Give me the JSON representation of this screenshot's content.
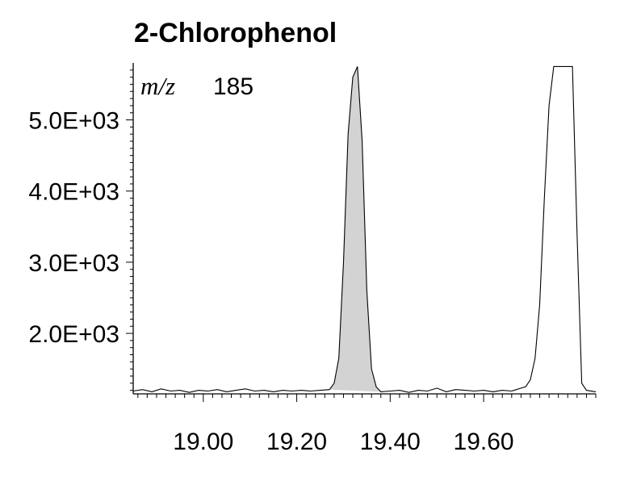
{
  "title": "2-Chlorophenol",
  "annotation": {
    "mz_label": "m/z",
    "mz_value": "185"
  },
  "colors": {
    "line": "#000000",
    "peak_fill": "#d3d3d3",
    "background": "#ffffff"
  },
  "chart_data": {
    "type": "line",
    "title": "2-Chlorophenol",
    "xlabel": "",
    "ylabel": "",
    "xlim": [
      18.85,
      19.84
    ],
    "ylim": [
      1150,
      5800
    ],
    "x_ticks": [
      19.0,
      19.2,
      19.4,
      19.6
    ],
    "x_tick_labels": [
      "19.00",
      "19.20",
      "19.40",
      "19.60"
    ],
    "y_ticks": [
      2000,
      3000,
      4000,
      5000
    ],
    "y_tick_labels": [
      "2.0E+03",
      "3.0E+03",
      "4.0E+03",
      "5.0E+03"
    ],
    "annotations": [
      "m/z 185"
    ],
    "grid": false,
    "series": [
      {
        "x": [
          18.85,
          18.87,
          18.89,
          18.91,
          18.93,
          18.95,
          18.97,
          18.99,
          19.01,
          19.03,
          19.05,
          19.07,
          19.09,
          19.11,
          19.13,
          19.15,
          19.17,
          19.19,
          19.21,
          19.23,
          19.25,
          19.27,
          19.28,
          19.29,
          19.3,
          19.31,
          19.32,
          19.33,
          19.34,
          19.35,
          19.36,
          19.37,
          19.38,
          19.4,
          19.42,
          19.44,
          19.46,
          19.48,
          19.5,
          19.52,
          19.54,
          19.56,
          19.58,
          19.6,
          19.62,
          19.64,
          19.66,
          19.68,
          19.69,
          19.7,
          19.71,
          19.72,
          19.73,
          19.74,
          19.75,
          19.76,
          19.77,
          19.78,
          19.79,
          19.8,
          19.81,
          19.82,
          19.84
        ],
        "y": [
          1190,
          1210,
          1180,
          1220,
          1190,
          1200,
          1170,
          1200,
          1190,
          1210,
          1180,
          1200,
          1220,
          1190,
          1200,
          1180,
          1200,
          1190,
          1200,
          1190,
          1200,
          1210,
          1300,
          1650,
          3000,
          4800,
          5600,
          5750,
          4700,
          2600,
          1500,
          1250,
          1180,
          1190,
          1200,
          1170,
          1200,
          1190,
          1230,
          1180,
          1210,
          1200,
          1190,
          1200,
          1180,
          1200,
          1190,
          1230,
          1250,
          1350,
          1650,
          2400,
          3900,
          5200,
          5750,
          5750,
          5750,
          5750,
          5750,
          3400,
          1300,
          1200,
          1180
        ],
        "shaded_peak_x_range": [
          19.27,
          19.38
        ]
      }
    ]
  }
}
